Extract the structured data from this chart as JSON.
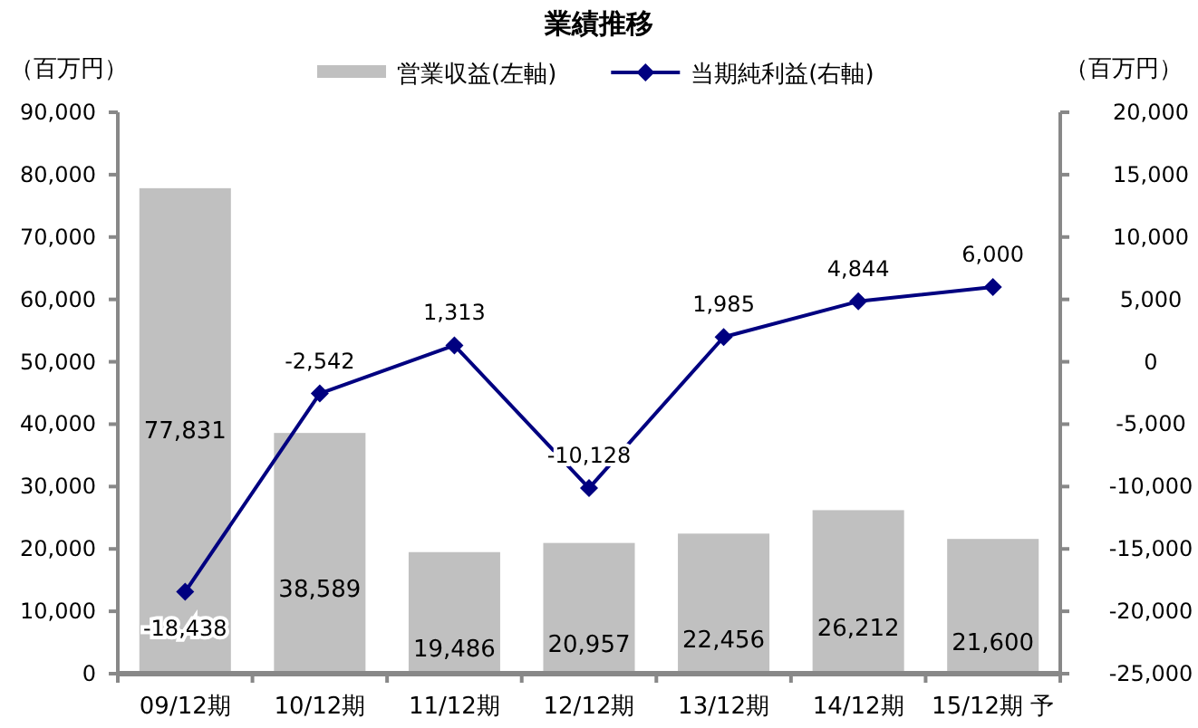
{
  "chart_data": {
    "type": "bar",
    "title": "業績推移",
    "ylabel": "（百万円）",
    "y2label": "（百万円）",
    "categories": [
      "09/12期",
      "10/12期",
      "11/12期",
      "12/12期",
      "13/12期",
      "14/12期",
      "15/12期 予"
    ],
    "series": [
      {
        "name": "営業収益(左軸)",
        "color": "#c0c0c0",
        "values": [
          77831,
          38589,
          19486,
          20957,
          22456,
          26212,
          21600
        ],
        "value_labels": [
          "77,831",
          "38,589",
          "19,486",
          "20,957",
          "22,456",
          "26,212",
          "21,600"
        ]
      },
      {
        "name": "当期純利益(右軸)",
        "type": "line",
        "axis": "y2",
        "color": "#000080",
        "values": [
          -18438,
          -2542,
          1313,
          -10128,
          1985,
          4844,
          6000
        ],
        "value_labels": [
          "-18,438",
          "-2,542",
          "1,313",
          "-10,128",
          "1,985",
          "4,844",
          "6,000"
        ]
      }
    ],
    "ylim": [
      0,
      90000
    ],
    "yticks": [
      0,
      {
        "value": 10000,
        "label": "10,000"
      },
      {
        "value": 20000,
        "label": "20,000"
      },
      {
        "value": 30000,
        "label": "30,000"
      },
      {
        "value": 40000,
        "label": "40,000"
      },
      {
        "value": 50000,
        "label": "50,000"
      },
      {
        "value": 60000,
        "label": "60,000"
      },
      {
        "value": 70000,
        "label": "70,000"
      },
      {
        "value": 80000,
        "label": "80,000"
      },
      {
        "value": 90000,
        "label": "90,000"
      }
    ],
    "y2lim": [
      -25000,
      20000
    ],
    "y2ticks": [
      {
        "value": -25000,
        "label": "-25,000"
      },
      {
        "value": -20000,
        "label": "-20,000"
      },
      {
        "value": -15000,
        "label": "-15,000"
      },
      {
        "value": -10000,
        "label": "-10,000"
      },
      {
        "value": -5000,
        "label": "-5,000"
      },
      0,
      {
        "value": 5000,
        "label": "5,000"
      },
      {
        "value": 10000,
        "label": "10,000"
      },
      {
        "value": 15000,
        "label": "15,000"
      },
      {
        "value": 20000,
        "label": "20,000"
      }
    ],
    "legend": "top",
    "grid": false,
    "marker": "diamond",
    "line_style": "solid"
  }
}
